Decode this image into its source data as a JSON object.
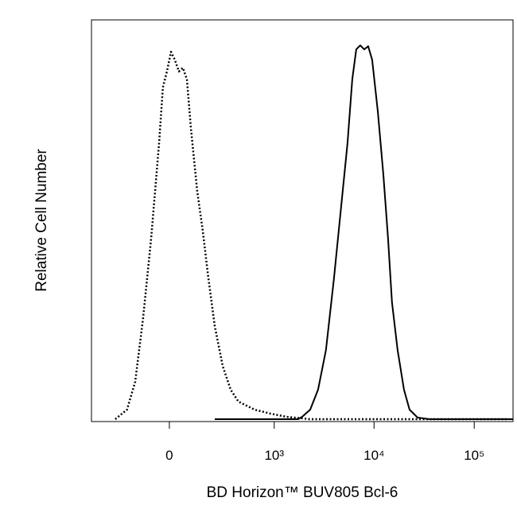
{
  "chart_data": {
    "type": "line",
    "xlabel": "BD Horizon™ BUV805 Bcl-6",
    "ylabel": "Relative Cell Number",
    "xscale": "asinh",
    "asinh_width": 181,
    "xlim": [
      -527,
      244000
    ],
    "ylim": [
      0,
      100
    ],
    "xticks": [
      0,
      {
        "value": 1000,
        "label": "10³"
      },
      {
        "value": 10000,
        "label": "10⁴"
      },
      {
        "value": 100000,
        "label": "10⁵"
      }
    ],
    "series": [
      {
        "color": "#000000",
        "dash": "dotted",
        "x": [
          -288,
          -205,
          -157,
          -116,
          -78,
          -43,
          -27,
          -10,
          7,
          23,
          40,
          57,
          75,
          93,
          124,
          153,
          185,
          225,
          282,
          348,
          424,
          628,
          914,
          1325,
          2300,
          222000
        ],
        "values": [
          0,
          2.4,
          9.4,
          25.3,
          45.2,
          69.1,
          83.1,
          87.1,
          92.0,
          90.0,
          87.1,
          88.0,
          85.1,
          73.1,
          57.2,
          47.2,
          35.3,
          23.3,
          13.3,
          7.4,
          4.4,
          2.4,
          1.4,
          0.6,
          0,
          0
        ]
      },
      {
        "color": "#000000",
        "dash": "solid",
        "x": [
          225,
          1747,
          1913,
          2300,
          2760,
          3310,
          3980,
          4780,
          5430,
          6060,
          6640,
          7280,
          7980,
          8740,
          9580,
          10900,
          12400,
          13800,
          15100,
          17200,
          19900,
          22600,
          27200,
          35700,
          243000
        ],
        "values": [
          0,
          0,
          0.6,
          2.4,
          7.4,
          17.3,
          35.3,
          55.2,
          69.1,
          85.1,
          92.6,
          93.6,
          92.6,
          93.4,
          90.0,
          77.1,
          61.2,
          45.2,
          29.3,
          17.3,
          7.4,
          2.4,
          0.4,
          0,
          0
        ]
      }
    ]
  }
}
